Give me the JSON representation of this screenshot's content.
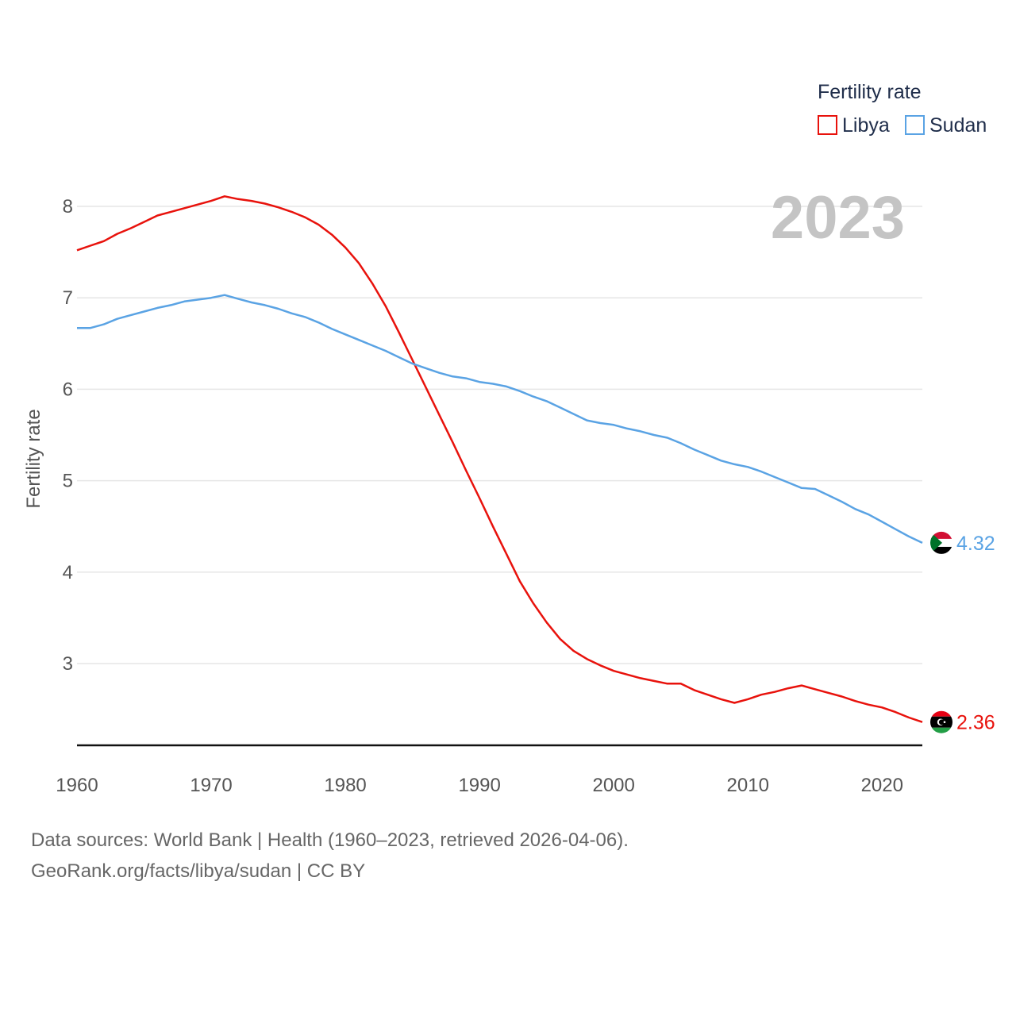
{
  "chart_data": {
    "type": "line",
    "title": "",
    "xlabel": "",
    "ylabel": "Fertility rate",
    "xlim": [
      1960,
      2023
    ],
    "ylim": [
      2.1,
      8.5
    ],
    "yticks": [
      3,
      4,
      5,
      6,
      7,
      8
    ],
    "xticks": [
      1960,
      1970,
      1980,
      1990,
      2000,
      2010,
      2020
    ],
    "grid": true,
    "legend_title": "Fertility rate",
    "legend_position": "top-right",
    "year_label": "2023",
    "colors": {
      "Libya": "#e8120c",
      "Sudan": "#5aa3e4"
    },
    "series": [
      {
        "name": "Libya",
        "end_label": "2.36",
        "x": [
          1960,
          1961,
          1962,
          1963,
          1964,
          1965,
          1966,
          1967,
          1968,
          1969,
          1970,
          1971,
          1972,
          1973,
          1974,
          1975,
          1976,
          1977,
          1978,
          1979,
          1980,
          1981,
          1982,
          1983,
          1984,
          1985,
          1986,
          1987,
          1988,
          1989,
          1990,
          1991,
          1992,
          1993,
          1994,
          1995,
          1996,
          1997,
          1998,
          1999,
          2000,
          2001,
          2002,
          2003,
          2004,
          2005,
          2006,
          2007,
          2008,
          2009,
          2010,
          2011,
          2012,
          2013,
          2014,
          2015,
          2016,
          2017,
          2018,
          2019,
          2020,
          2021,
          2022,
          2023
        ],
        "values": [
          7.52,
          7.57,
          7.62,
          7.7,
          7.76,
          7.83,
          7.9,
          7.94,
          7.98,
          8.02,
          8.06,
          8.11,
          8.08,
          8.06,
          8.03,
          7.99,
          7.94,
          7.88,
          7.8,
          7.69,
          7.55,
          7.38,
          7.16,
          6.91,
          6.62,
          6.32,
          6.02,
          5.72,
          5.42,
          5.11,
          4.81,
          4.5,
          4.2,
          3.9,
          3.66,
          3.45,
          3.27,
          3.14,
          3.05,
          2.98,
          2.92,
          2.88,
          2.84,
          2.81,
          2.78,
          2.78,
          2.71,
          2.66,
          2.61,
          2.57,
          2.61,
          2.66,
          2.69,
          2.73,
          2.76,
          2.72,
          2.68,
          2.64,
          2.59,
          2.55,
          2.52,
          2.47,
          2.41,
          2.36
        ]
      },
      {
        "name": "Sudan",
        "end_label": "4.32",
        "x": [
          1960,
          1961,
          1962,
          1963,
          1964,
          1965,
          1966,
          1967,
          1968,
          1969,
          1970,
          1971,
          1972,
          1973,
          1974,
          1975,
          1976,
          1977,
          1978,
          1979,
          1980,
          1981,
          1982,
          1983,
          1984,
          1985,
          1986,
          1987,
          1988,
          1989,
          1990,
          1991,
          1992,
          1993,
          1994,
          1995,
          1996,
          1997,
          1998,
          1999,
          2000,
          2001,
          2002,
          2003,
          2004,
          2005,
          2006,
          2007,
          2008,
          2009,
          2010,
          2011,
          2012,
          2013,
          2014,
          2015,
          2016,
          2017,
          2018,
          2019,
          2020,
          2021,
          2022,
          2023
        ],
        "values": [
          6.67,
          6.67,
          6.71,
          6.77,
          6.81,
          6.85,
          6.89,
          6.92,
          6.96,
          6.98,
          7.0,
          7.03,
          6.99,
          6.95,
          6.92,
          6.88,
          6.83,
          6.79,
          6.73,
          6.66,
          6.6,
          6.54,
          6.48,
          6.42,
          6.35,
          6.28,
          6.23,
          6.18,
          6.14,
          6.12,
          6.08,
          6.06,
          6.03,
          5.98,
          5.92,
          5.87,
          5.8,
          5.73,
          5.66,
          5.63,
          5.61,
          5.57,
          5.54,
          5.5,
          5.47,
          5.41,
          5.34,
          5.28,
          5.22,
          5.18,
          5.15,
          5.1,
          5.04,
          4.98,
          4.92,
          4.91,
          4.84,
          4.77,
          4.69,
          4.63,
          4.55,
          4.47,
          4.39,
          4.32
        ]
      }
    ]
  },
  "footer": {
    "line1": "Data sources: World Bank | Health (1960–2023, retrieved 2026-04-06).",
    "line2": "GeoRank.org/facts/libya/sudan | CC BY"
  }
}
